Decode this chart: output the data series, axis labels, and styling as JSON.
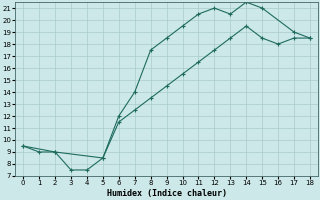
{
  "xlabel": "Humidex (Indice chaleur)",
  "xlim": [
    -0.5,
    18.5
  ],
  "ylim": [
    7,
    21.5
  ],
  "xticks": [
    0,
    1,
    2,
    3,
    4,
    5,
    6,
    7,
    8,
    9,
    10,
    11,
    12,
    13,
    14,
    15,
    16,
    17,
    18
  ],
  "yticks": [
    7,
    8,
    9,
    10,
    11,
    12,
    13,
    14,
    15,
    16,
    17,
    18,
    19,
    20,
    21
  ],
  "bg_color": "#cce8e8",
  "grid_color": "#aacccc",
  "line_color": "#1e6b5e",
  "line1_x": [
    0,
    1,
    2,
    3,
    4,
    5,
    6,
    7,
    8,
    9,
    10,
    11,
    12,
    13,
    14,
    15,
    17,
    18
  ],
  "line1_y": [
    9.5,
    9.0,
    9.0,
    7.5,
    7.5,
    8.5,
    12.0,
    14.0,
    17.5,
    18.5,
    19.5,
    20.5,
    21.0,
    20.5,
    21.5,
    21.0,
    19.0,
    18.5
  ],
  "line2_x": [
    0,
    2,
    5,
    6,
    7,
    8,
    9,
    10,
    11,
    12,
    13,
    14,
    15,
    16,
    17,
    18
  ],
  "line2_y": [
    9.5,
    9.0,
    8.5,
    11.5,
    12.5,
    13.5,
    14.5,
    15.5,
    16.5,
    17.5,
    18.5,
    19.5,
    18.5,
    18.0,
    18.5,
    18.5
  ],
  "xlabel_fontsize": 6.0,
  "tick_fontsize": 5.0
}
